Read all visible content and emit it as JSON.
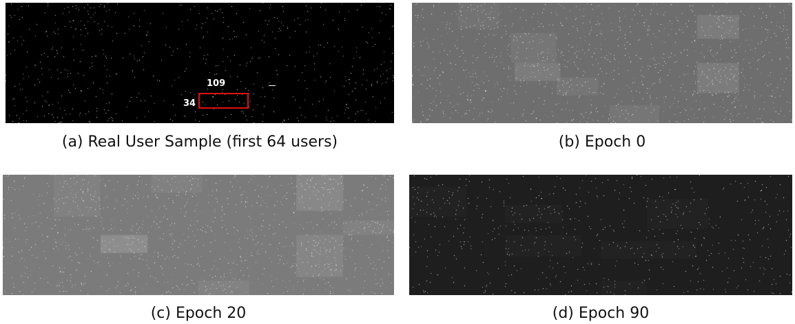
{
  "figure": {
    "panels": [
      {
        "id": "a",
        "caption": "(a) Real User Sample (first 64 users)",
        "background": "#000000",
        "noise_gray": "#000000",
        "point_density": 0.06,
        "annotations": {
          "row_label": "34",
          "col_label": "109"
        },
        "highlight_color": "#e01010"
      },
      {
        "id": "b",
        "caption": "(b) Epoch 0",
        "background": "#6e6e6e",
        "noise_gray": "#7a7a7a",
        "point_density": 0.25
      },
      {
        "id": "c",
        "caption": "(c) Epoch 20",
        "background": "#7b7b7b",
        "noise_gray": "#7f7f7f",
        "point_density": 0.2
      },
      {
        "id": "d",
        "caption": "(d) Epoch 90",
        "background": "#1e1e1e",
        "noise_gray": "#262626",
        "point_density": 0.06
      }
    ]
  }
}
